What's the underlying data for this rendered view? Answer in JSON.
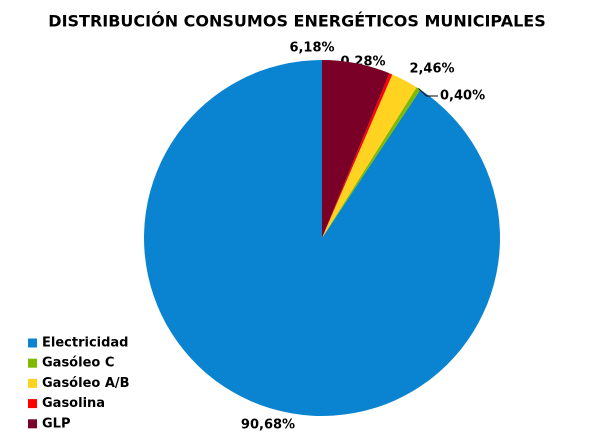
{
  "chart_data": {
    "type": "pie",
    "title": "DISTRIBUCIÓN CONSUMOS ENERGÉTICOS MUNICIPALES",
    "categories": [
      "Electricidad",
      "Gasóleo C",
      "Gasóleo A/B",
      "Gasolina",
      "GLP"
    ],
    "values": [
      90.68,
      0.4,
      2.46,
      0.28,
      6.18
    ],
    "value_labels": [
      "90,68%",
      "0,40%",
      "2,46%",
      "0,28%",
      "6,18%"
    ],
    "colors": [
      "#0a84d0",
      "#7fba00",
      "#ffd320",
      "#ff0000",
      "#7b0027"
    ],
    "legend": "bottom-left"
  }
}
